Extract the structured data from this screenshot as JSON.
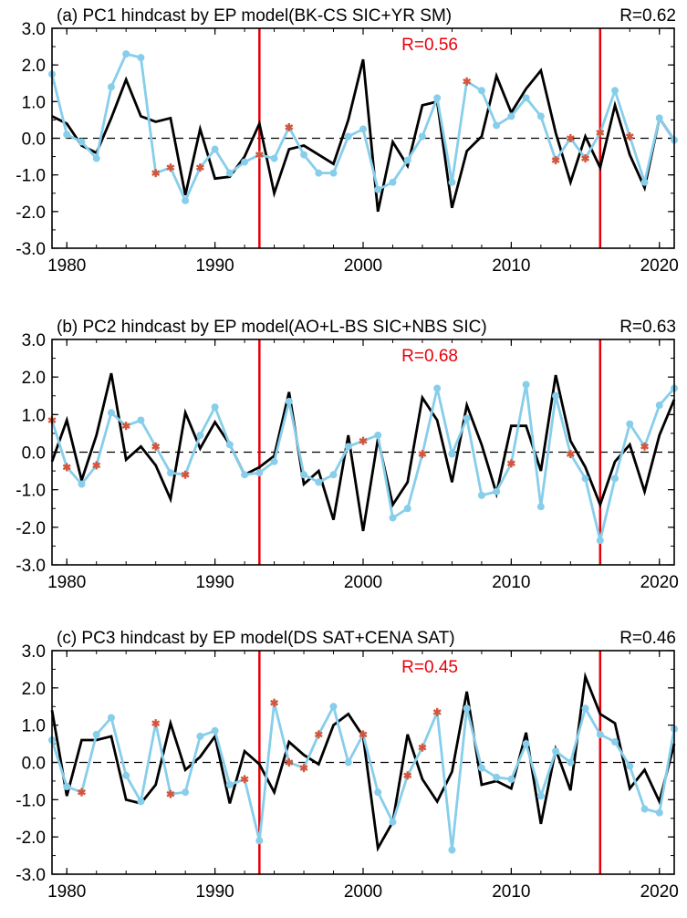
{
  "colors": {
    "observed": "#000000",
    "hindcast": "#87ceeb",
    "marker_cross": "#d2553c",
    "split_line": "#e8000b",
    "zero_line": "#000000"
  },
  "chart_data": [
    {
      "type": "line",
      "title": "(a) PC1 hindcast by EP model(BK-CS SIC+YR SM)",
      "r_total": "R=0.62",
      "r_mid": "R=0.56",
      "xlim": [
        1979,
        2021
      ],
      "ylim": [
        -3.0,
        3.0
      ],
      "xticks": [
        "1980",
        "1990",
        "2000",
        "2010",
        "2020"
      ],
      "yticks": [
        "3.0",
        "2.0",
        "1.0",
        "0.0",
        "-1.0",
        "-2.0",
        "-3.0"
      ],
      "split_years": [
        1993,
        2016
      ],
      "zero_line": "dashed",
      "x": [
        1979,
        1980,
        1981,
        1982,
        1983,
        1984,
        1985,
        1986,
        1987,
        1988,
        1989,
        1990,
        1991,
        1992,
        1993,
        1994,
        1995,
        1996,
        1997,
        1998,
        1999,
        2000,
        2001,
        2002,
        2003,
        2004,
        2005,
        2006,
        2007,
        2008,
        2009,
        2010,
        2011,
        2012,
        2013,
        2014,
        2015,
        2016,
        2017,
        2018,
        2019,
        2020,
        2021
      ],
      "series": [
        {
          "values": [
            0.6,
            0.4,
            -0.2,
            -0.4,
            0.55,
            1.6,
            0.6,
            0.45,
            0.55,
            -1.55,
            0.25,
            -1.1,
            -1.05,
            -0.5,
            0.4,
            -1.5,
            -0.3,
            -0.2,
            -0.45,
            -0.7,
            0.5,
            2.15,
            -2.0,
            -0.1,
            -0.75,
            0.9,
            1.0,
            -1.9,
            -0.35,
            0.05,
            1.7,
            0.7,
            1.35,
            1.85,
            0.15,
            -1.2,
            0.05,
            -0.8,
            0.9,
            -0.45,
            -1.35,
            0.55,
            -0.05
          ]
        },
        {
          "values": [
            1.75,
            0.1,
            -0.1,
            -0.55,
            1.4,
            2.3,
            2.2,
            -0.95,
            -0.8,
            -1.7,
            -0.8,
            -0.3,
            -0.95,
            -0.65,
            -0.45,
            -0.55,
            0.3,
            -0.45,
            -0.95,
            -0.95,
            0.05,
            0.25,
            -1.4,
            -1.2,
            -0.6,
            0.05,
            1.1,
            -1.2,
            1.55,
            1.3,
            0.35,
            0.6,
            1.1,
            0.6,
            -0.6,
            0.0,
            -0.55,
            0.15,
            1.3,
            0.05,
            -1.2,
            0.55,
            -0.05
          ]
        }
      ],
      "cross_x": [
        1986,
        1987,
        1989,
        1993,
        1995,
        2007,
        2013,
        2014,
        2015,
        2016,
        2018
      ]
    },
    {
      "type": "line",
      "title": "(b) PC2 hindcast by EP model(AO+L-BS SIC+NBS SIC)",
      "r_total": "R=0.63",
      "r_mid": "R=0.68",
      "xlim": [
        1979,
        2021
      ],
      "ylim": [
        -3.0,
        3.0
      ],
      "xticks": [
        "1980",
        "1990",
        "2000",
        "2010",
        "2020"
      ],
      "yticks": [
        "3.0",
        "2.0",
        "1.0",
        "0.0",
        "-1.0",
        "-2.0",
        "-3.0"
      ],
      "split_years": [
        1993,
        2016
      ],
      "zero_line": "dashed",
      "x": [
        1979,
        1980,
        1981,
        1982,
        1983,
        1984,
        1985,
        1986,
        1987,
        1988,
        1989,
        1990,
        1991,
        1992,
        1993,
        1994,
        1995,
        1996,
        1997,
        1998,
        1999,
        2000,
        2001,
        2002,
        2003,
        2004,
        2005,
        2006,
        2007,
        2008,
        2009,
        2010,
        2011,
        2012,
        2013,
        2014,
        2015,
        2016,
        2017,
        2018,
        2019,
        2020,
        2021
      ],
      "series": [
        {
          "values": [
            -0.25,
            0.85,
            -0.75,
            0.45,
            2.1,
            -0.2,
            0.15,
            -0.35,
            -1.25,
            1.05,
            0.1,
            0.8,
            0.2,
            -0.6,
            -0.4,
            -0.1,
            1.6,
            -0.85,
            -0.5,
            -1.8,
            0.45,
            -2.1,
            0.35,
            -1.4,
            -0.8,
            1.45,
            0.85,
            -0.8,
            1.25,
            0.2,
            -1.1,
            0.7,
            0.7,
            -0.5,
            2.05,
            0.3,
            -0.4,
            -1.4,
            -0.25,
            0.2,
            -1.05,
            0.45,
            1.4
          ]
        },
        {
          "values": [
            0.85,
            -0.4,
            -0.85,
            -0.35,
            1.05,
            0.7,
            0.85,
            0.15,
            -0.55,
            -0.6,
            0.45,
            1.2,
            0.2,
            -0.6,
            -0.55,
            -0.25,
            1.35,
            -0.6,
            -0.8,
            -0.6,
            0.15,
            0.3,
            0.45,
            -1.75,
            -1.5,
            -0.05,
            1.7,
            -0.05,
            0.9,
            -1.15,
            -1.05,
            -0.3,
            1.8,
            -1.45,
            1.5,
            -0.05,
            -0.7,
            -2.35,
            -0.7,
            0.75,
            0.15,
            1.25,
            1.7
          ]
        }
      ],
      "cross_x": [
        1979,
        1980,
        1982,
        1984,
        1986,
        1988,
        2000,
        2004,
        2010,
        2014,
        2019
      ]
    },
    {
      "type": "line",
      "title": "(c) PC3 hindcast by EP model(DS SAT+CENA SAT)",
      "r_total": "R=0.46",
      "r_mid": "R=0.45",
      "xlim": [
        1979,
        2021
      ],
      "ylim": [
        -3.0,
        3.0
      ],
      "xticks": [
        "1980",
        "1990",
        "2000",
        "2010",
        "2020"
      ],
      "yticks": [
        "3.0",
        "2.0",
        "1.0",
        "0.0",
        "-1.0",
        "-2.0",
        "-3.0"
      ],
      "split_years": [
        1993,
        2016
      ],
      "zero_line": "dashed",
      "x": [
        1979,
        1980,
        1981,
        1982,
        1983,
        1984,
        1985,
        1986,
        1987,
        1988,
        1989,
        1990,
        1991,
        1992,
        1993,
        1994,
        1995,
        1996,
        1997,
        1998,
        1999,
        2000,
        2001,
        2002,
        2003,
        2004,
        2005,
        2006,
        2007,
        2008,
        2009,
        2010,
        2011,
        2012,
        2013,
        2014,
        2015,
        2016,
        2017,
        2018,
        2019,
        2020,
        2021
      ],
      "series": [
        {
          "values": [
            1.4,
            -0.9,
            0.6,
            0.6,
            0.7,
            -1.0,
            -1.1,
            -0.6,
            1.05,
            -0.2,
            0.15,
            0.7,
            -1.1,
            0.3,
            -0.05,
            -0.8,
            0.55,
            0.2,
            -0.05,
            1.0,
            1.3,
            0.7,
            -2.3,
            -1.6,
            0.75,
            -0.45,
            -1.05,
            -0.25,
            1.9,
            -0.6,
            -0.5,
            -0.7,
            0.8,
            -1.65,
            0.35,
            -0.75,
            2.3,
            1.3,
            1.05,
            -0.7,
            -0.2,
            -1.05,
            0.5
          ]
        },
        {
          "values": [
            0.6,
            -0.65,
            -0.8,
            0.75,
            1.2,
            -0.35,
            -1.05,
            1.05,
            -0.85,
            -0.8,
            0.7,
            0.85,
            -0.6,
            -0.45,
            -2.1,
            1.6,
            0.0,
            -0.15,
            0.75,
            1.5,
            0.0,
            0.75,
            -0.8,
            -1.6,
            -0.35,
            0.4,
            1.35,
            -2.35,
            1.45,
            -0.15,
            -0.4,
            -0.45,
            0.5,
            -0.9,
            0.3,
            0.0,
            1.45,
            0.75,
            0.55,
            -0.1,
            -1.25,
            -1.35,
            0.9
          ]
        }
      ],
      "cross_x": [
        1981,
        1986,
        1987,
        1992,
        1994,
        1995,
        1996,
        1997,
        2000,
        2003,
        2004,
        2005
      ]
    }
  ]
}
